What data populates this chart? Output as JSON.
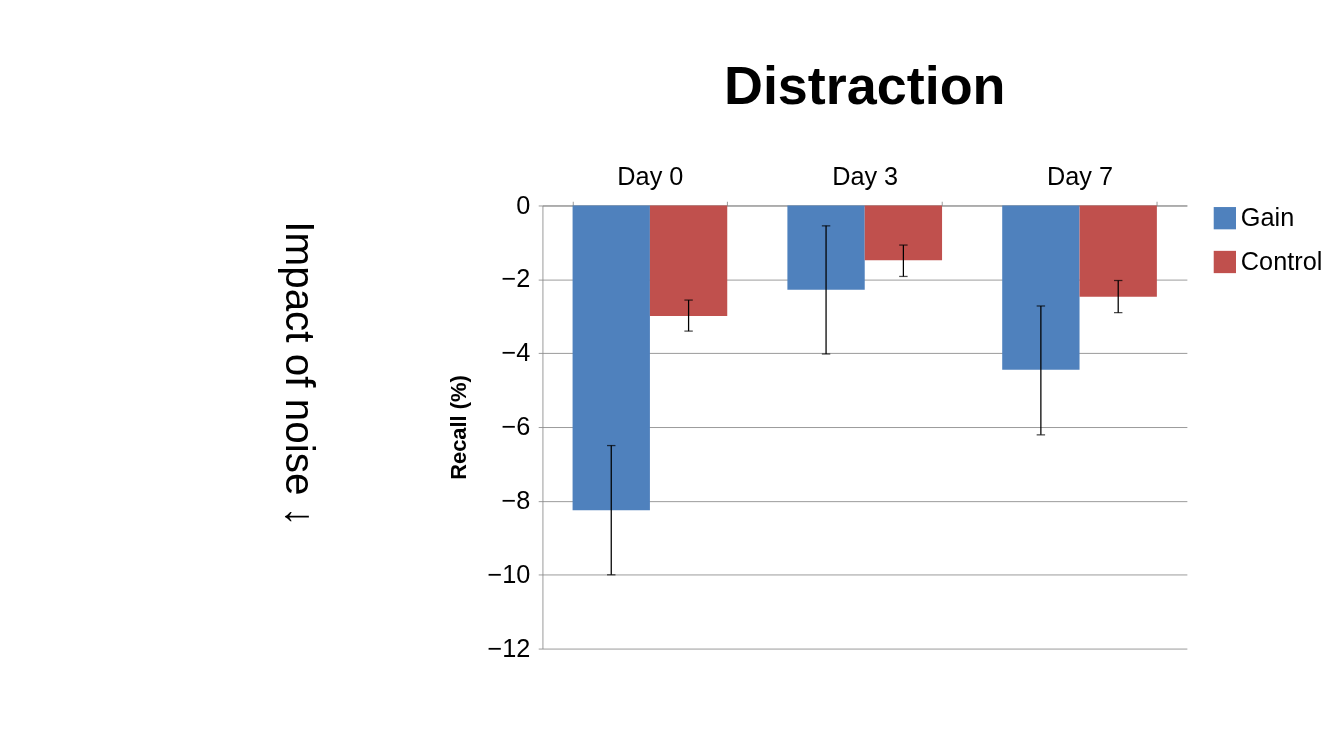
{
  "chart_data": {
    "type": "bar",
    "title": "Distraction",
    "ylabel": "Recall (%)",
    "categories": [
      "Day 0",
      "Day 3",
      "Day 7"
    ],
    "series": [
      {
        "name": "Gain",
        "color": "#4f81bd",
        "values": [
          -8.25,
          -2.28,
          -4.45
        ],
        "errors": [
          [
            -10,
            -6.5
          ],
          [
            -4.02,
            -0.55
          ],
          [
            -6.21,
            -2.72
          ]
        ]
      },
      {
        "name": "Control",
        "color": "#c0504d",
        "values": [
          -2.99,
          -1.48,
          -2.47
        ],
        "errors": [
          [
            -3.4,
            -2.56
          ],
          [
            -1.92,
            -1.07
          ],
          [
            -2.9,
            -2.03
          ]
        ]
      }
    ],
    "ylim": [
      -12,
      0
    ],
    "yticks": [
      0,
      -2,
      -4,
      -6,
      -8,
      -10,
      -12
    ],
    "grid": "y",
    "legend": "right",
    "annotations": [
      "Impact of noise ↓"
    ]
  }
}
